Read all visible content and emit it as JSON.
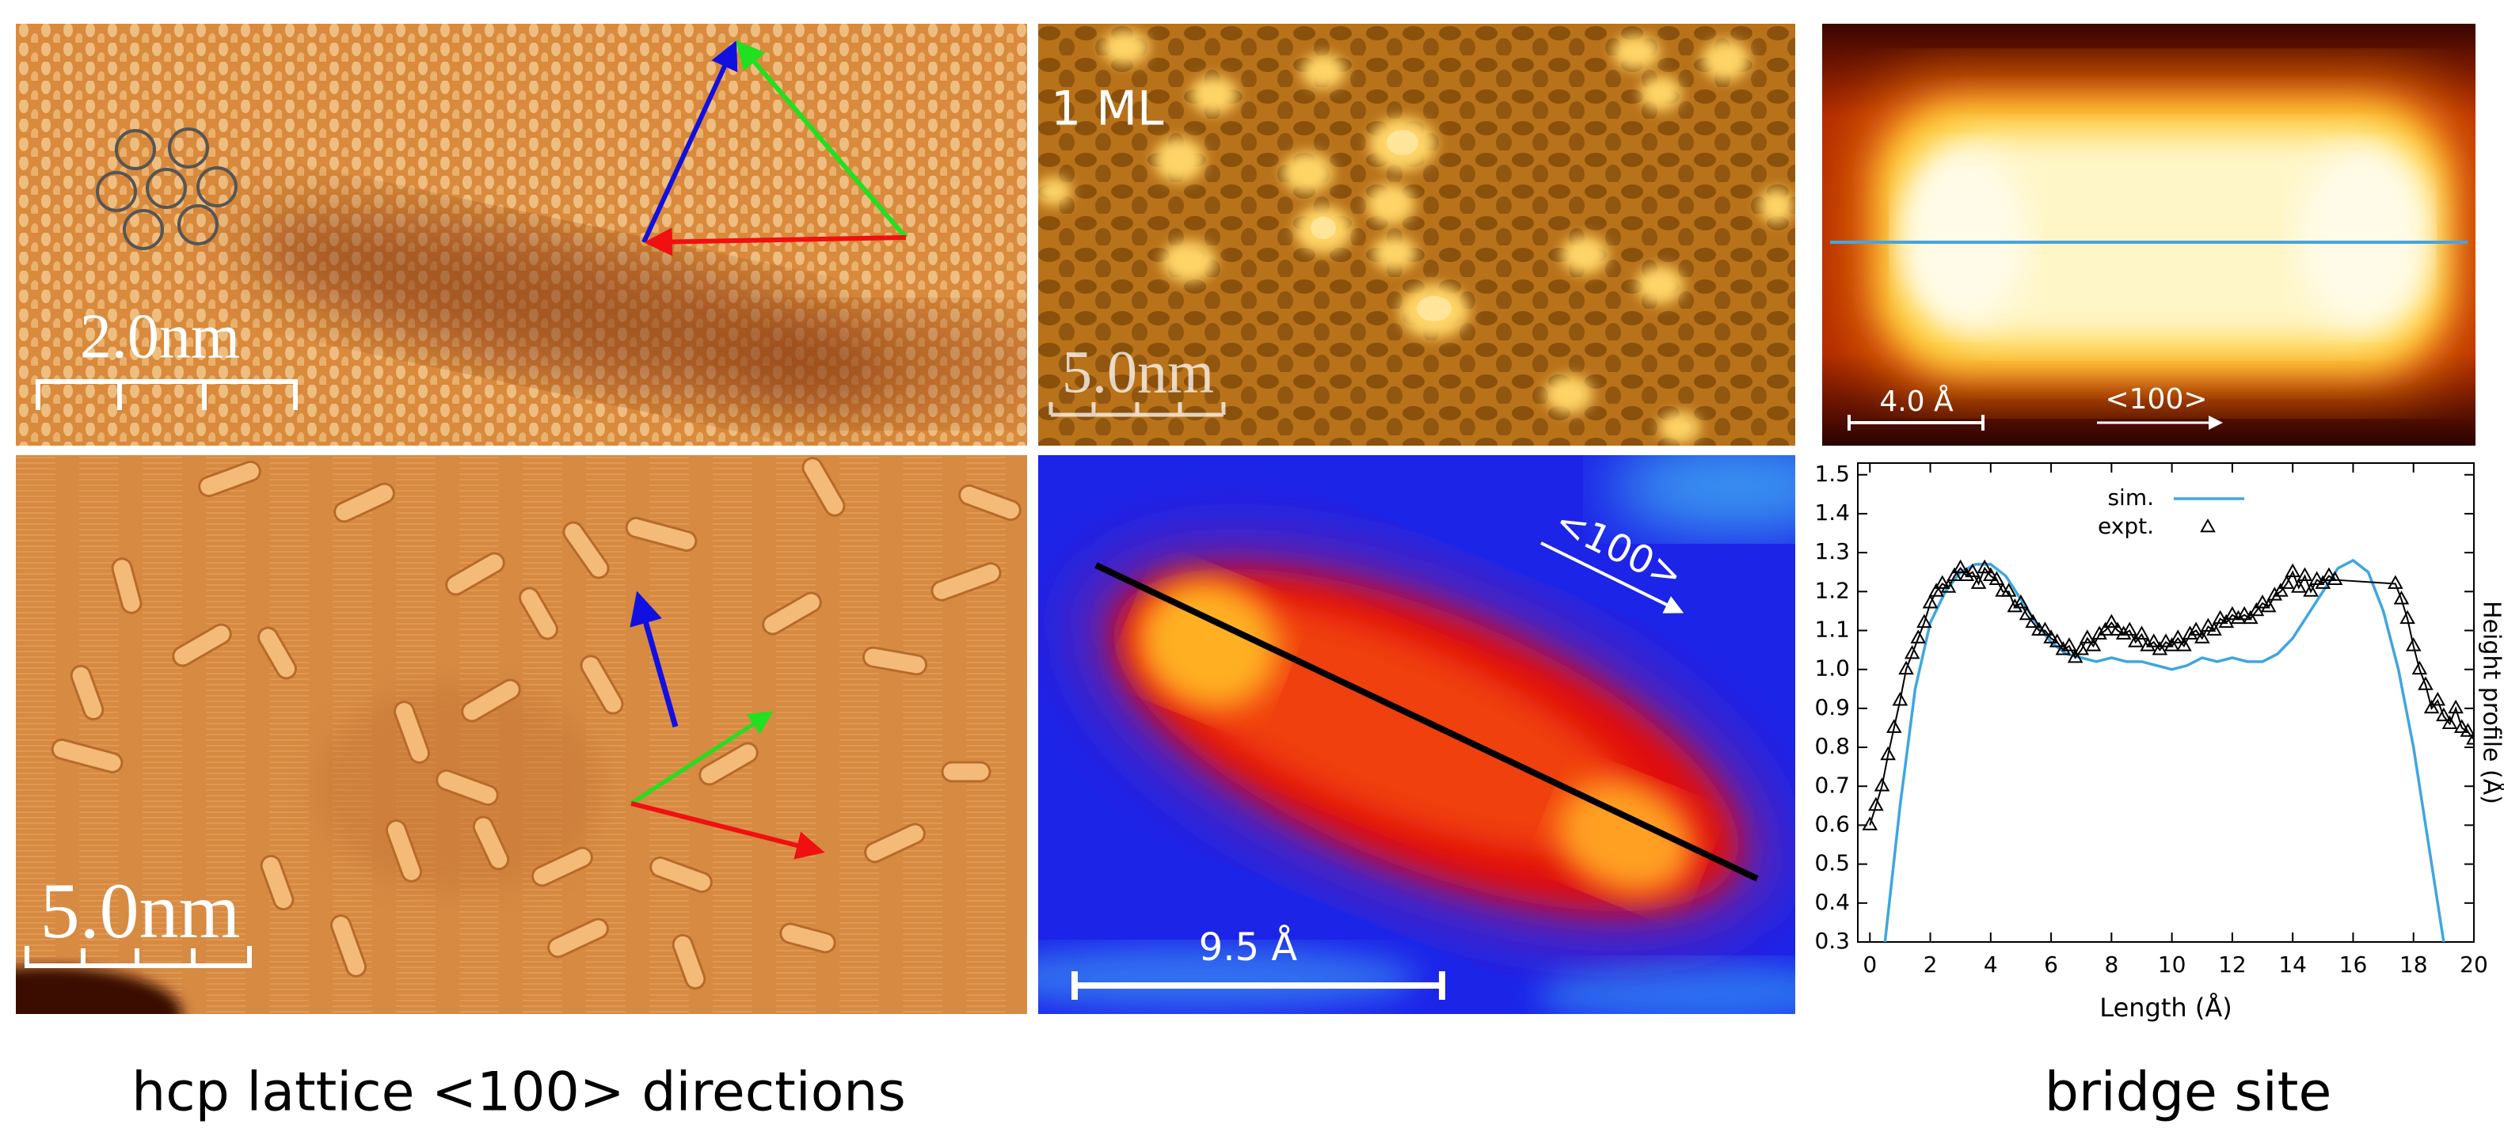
{
  "panels": {
    "a": {
      "scale_bar": "2.0nm"
    },
    "b": {
      "label": "1 ML",
      "scale_bar": "5.0nm"
    },
    "c": {
      "scale_bar": "4.0 Å",
      "direction": "<100>"
    },
    "d": {
      "scale_bar": "5.0nm"
    },
    "e": {
      "direction": "<100>",
      "scale_bar": "9.5 Å"
    }
  },
  "captions": [
    "hcp lattice <100> directions",
    "bridge site"
  ],
  "chart_data": {
    "type": "line",
    "x_label": "Length (Å)",
    "y_label": "Height profile (Å)",
    "xlim": [
      -0.4,
      20
    ],
    "ylim": [
      0.3,
      1.53
    ],
    "xticks": [
      0,
      2,
      4,
      6,
      8,
      10,
      12,
      14,
      16,
      18,
      20
    ],
    "yticks": [
      0.3,
      0.4,
      0.5,
      0.6,
      0.7,
      0.8,
      0.9,
      {
        "value": 1,
        "label": "1.0"
      },
      1.1,
      1.2,
      1.3,
      1.4,
      1.5
    ],
    "series": [
      {
        "name": "sim.",
        "color": "#3ea6e0",
        "marker": "none",
        "x": [
          0.5,
          1,
          1.5,
          2,
          2.5,
          3,
          3.5,
          4,
          4.5,
          5,
          5.5,
          6,
          6.5,
          7,
          7.5,
          8,
          8.5,
          9,
          9.5,
          10,
          10.5,
          11,
          11.5,
          12,
          12.5,
          13,
          13.5,
          14,
          14.5,
          15,
          15.5,
          16,
          16.5,
          17,
          17.5,
          18,
          18.5,
          19
        ],
        "values": [
          0.3,
          0.65,
          0.95,
          1.12,
          1.2,
          1.25,
          1.27,
          1.27,
          1.24,
          1.18,
          1.12,
          1.07,
          1.04,
          1.03,
          1.02,
          1.03,
          1.02,
          1.02,
          1.01,
          1.0,
          1.01,
          1.03,
          1.02,
          1.03,
          1.02,
          1.02,
          1.04,
          1.08,
          1.14,
          1.2,
          1.26,
          1.28,
          1.25,
          1.15,
          1.0,
          0.8,
          0.55,
          0.3
        ]
      },
      {
        "name": "expt.",
        "color": "#000000",
        "marker": "triangle",
        "x": [
          0,
          0.2,
          0.4,
          0.6,
          0.8,
          1.0,
          1.2,
          1.4,
          1.6,
          1.8,
          2.0,
          2.2,
          2.4,
          2.6,
          2.8,
          3.0,
          3.2,
          3.4,
          3.6,
          3.8,
          4.0,
          4.2,
          4.4,
          4.6,
          4.8,
          5.0,
          5.2,
          5.4,
          5.6,
          5.8,
          6.0,
          6.2,
          6.4,
          6.6,
          6.8,
          7.0,
          7.2,
          7.4,
          7.6,
          7.8,
          8.0,
          8.2,
          8.4,
          8.6,
          8.8,
          9.0,
          9.2,
          9.4,
          9.6,
          9.8,
          10.0,
          10.2,
          10.4,
          10.6,
          10.8,
          11.0,
          11.2,
          11.4,
          11.6,
          11.8,
          12.0,
          12.2,
          12.4,
          12.6,
          12.8,
          13.0,
          13.2,
          13.4,
          13.6,
          13.8,
          14.0,
          14.2,
          14.4,
          14.6,
          14.8,
          15.0,
          15.2,
          15.4,
          17.4,
          17.6,
          17.8,
          18.0,
          18.2,
          18.4,
          18.6,
          18.8,
          19.0,
          19.2,
          19.4,
          19.6,
          19.8,
          20
        ],
        "values": [
          0.6,
          0.65,
          0.7,
          0.78,
          0.85,
          0.92,
          1.0,
          1.04,
          1.08,
          1.12,
          1.17,
          1.2,
          1.22,
          1.21,
          1.24,
          1.26,
          1.24,
          1.25,
          1.22,
          1.26,
          1.24,
          1.23,
          1.2,
          1.2,
          1.16,
          1.17,
          1.14,
          1.12,
          1.1,
          1.1,
          1.08,
          1.07,
          1.05,
          1.06,
          1.03,
          1.05,
          1.08,
          1.06,
          1.09,
          1.1,
          1.12,
          1.1,
          1.09,
          1.1,
          1.07,
          1.09,
          1.06,
          1.07,
          1.05,
          1.07,
          1.06,
          1.08,
          1.06,
          1.09,
          1.1,
          1.08,
          1.11,
          1.1,
          1.13,
          1.12,
          1.14,
          1.13,
          1.14,
          1.13,
          1.15,
          1.17,
          1.16,
          1.19,
          1.2,
          1.22,
          1.25,
          1.21,
          1.24,
          1.2,
          1.23,
          1.22,
          1.24,
          1.23,
          1.22,
          1.18,
          1.13,
          1.06,
          1.0,
          0.96,
          0.9,
          0.92,
          0.88,
          0.86,
          0.9,
          0.85,
          0.84,
          0.82
        ]
      }
    ]
  }
}
